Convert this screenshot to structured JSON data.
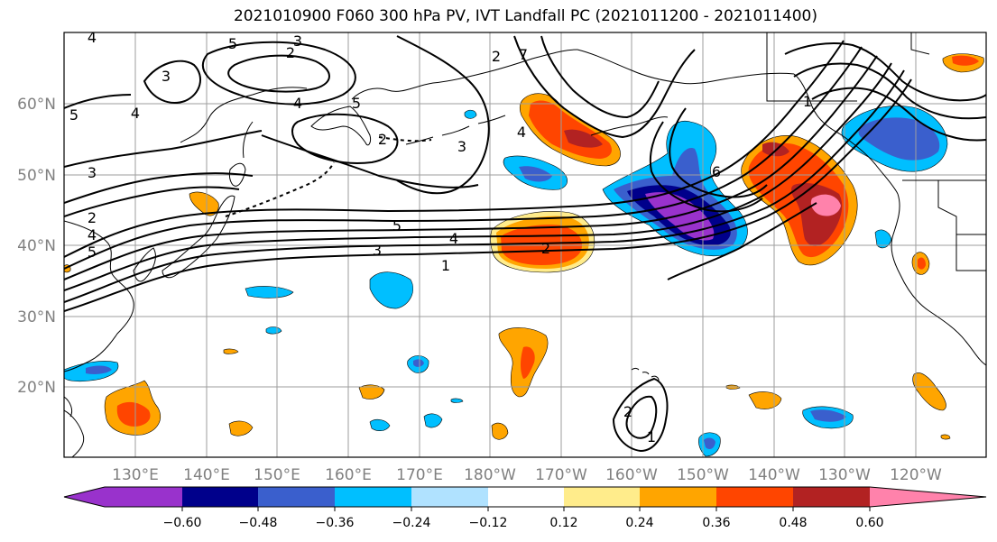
{
  "title": "2021010900 F060 300 hPa PV, IVT Landfall PC (2021011200 - 2021011400)",
  "lat_labels": [
    "60°N",
    "50°N",
    "40°N",
    "30°N",
    "20°N"
  ],
  "lon_labels": [
    "130°E",
    "140°E",
    "150°E",
    "160°E",
    "170°E",
    "180°W",
    "170°W",
    "160°W",
    "150°W",
    "140°W",
    "130°W",
    "120°W"
  ],
  "colorbar": {
    "tick_labels": [
      "−0.60",
      "−0.48",
      "−0.36",
      "−0.24",
      "−0.12",
      "0.12",
      "0.24",
      "0.36",
      "0.48",
      "0.60"
    ],
    "colors": [
      "#9932cc",
      "#00008b",
      "#3a5fcd",
      "#00bfff",
      "#b0e2ff",
      "#ffffff",
      "#ffec8b",
      "#ffa500",
      "#ff4500",
      "#b22222",
      "#ff82ab"
    ]
  },
  "contour_labels": [
    "4",
    "5",
    "3",
    "2",
    "3",
    "2",
    "4",
    "5",
    "2",
    "4",
    "3",
    "5",
    "2",
    "4",
    "5",
    "3",
    "4",
    "2",
    "3",
    "1",
    "4",
    "5",
    "6",
    "7",
    "1",
    "2",
    "1"
  ]
}
